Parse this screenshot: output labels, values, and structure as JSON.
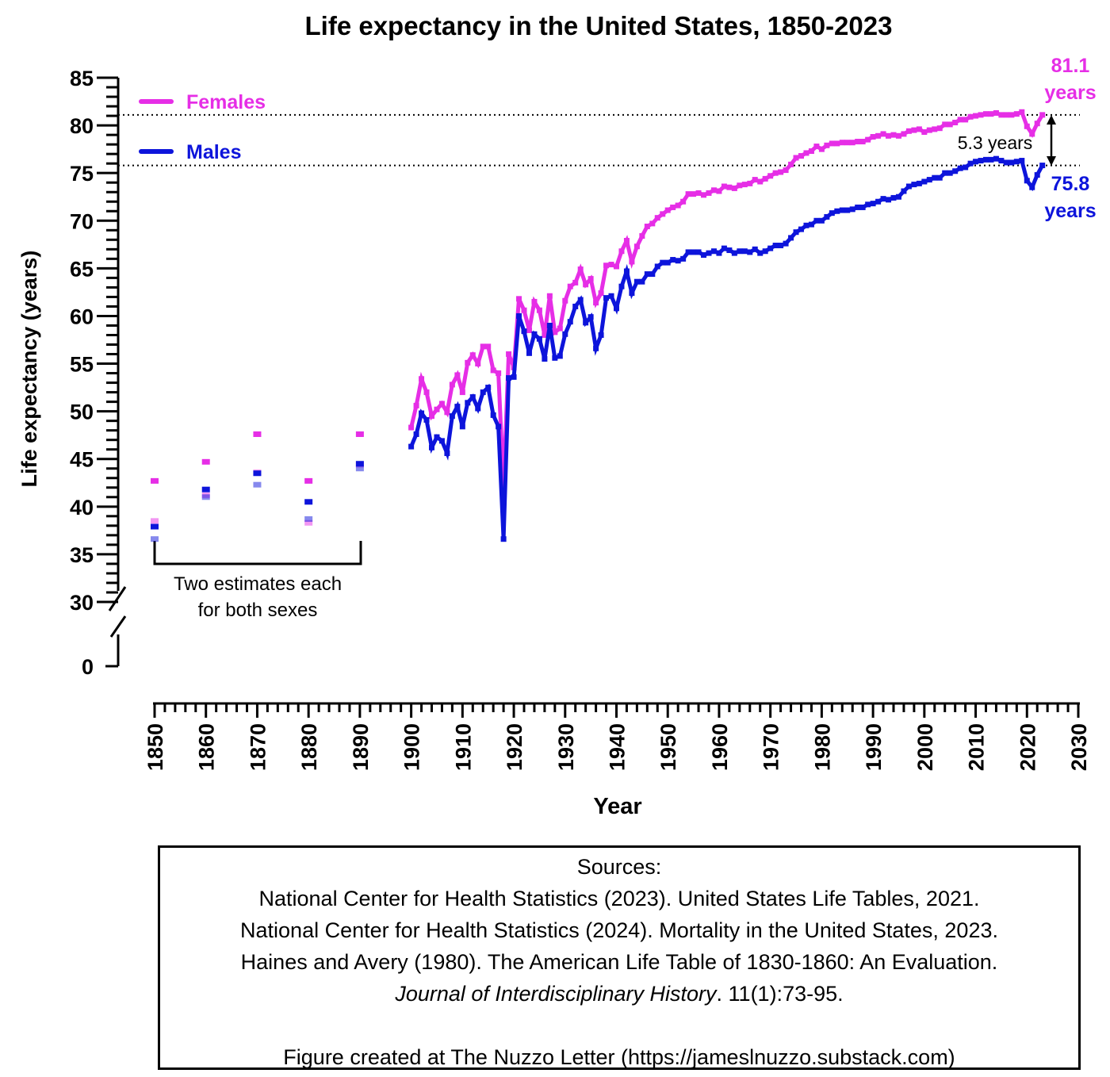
{
  "chart_data": {
    "type": "line",
    "title": "Life expectancy in the United States, 1850-2023",
    "xlabel": "Year",
    "ylabel": "Life expectancy (years)",
    "xlim": [
      1850,
      2030
    ],
    "ylim": [
      30,
      85
    ],
    "y_axis_break": {
      "below": 30,
      "bottom_tick": 0
    },
    "x_ticks": [
      "1850",
      "1860",
      "1870",
      "1880",
      "1890",
      "1900",
      "1910",
      "1920",
      "1930",
      "1940",
      "1950",
      "1960",
      "1970",
      "1980",
      "1990",
      "2000",
      "2010",
      "2020",
      "2030"
    ],
    "y_ticks": [
      "85",
      "80",
      "75",
      "70",
      "65",
      "60",
      "55",
      "50",
      "45",
      "40",
      "35",
      "30",
      "0"
    ],
    "grid": false,
    "legend_position": "top-left",
    "series": [
      {
        "name": "Females",
        "color": "#e62ee6",
        "x": [
          1900,
          1901,
          1902,
          1903,
          1904,
          1905,
          1906,
          1907,
          1908,
          1909,
          1910,
          1911,
          1912,
          1913,
          1914,
          1915,
          1916,
          1917,
          1918,
          1919,
          1920,
          1921,
          1922,
          1923,
          1924,
          1925,
          1926,
          1927,
          1928,
          1929,
          1930,
          1931,
          1932,
          1933,
          1934,
          1935,
          1936,
          1937,
          1938,
          1939,
          1940,
          1941,
          1942,
          1943,
          1944,
          1945,
          1946,
          1947,
          1948,
          1949,
          1950,
          1951,
          1952,
          1953,
          1954,
          1955,
          1956,
          1957,
          1958,
          1959,
          1960,
          1961,
          1962,
          1963,
          1964,
          1965,
          1966,
          1967,
          1968,
          1969,
          1970,
          1971,
          1972,
          1973,
          1974,
          1975,
          1976,
          1977,
          1978,
          1979,
          1980,
          1981,
          1982,
          1983,
          1984,
          1985,
          1986,
          1987,
          1988,
          1989,
          1990,
          1991,
          1992,
          1993,
          1994,
          1995,
          1996,
          1997,
          1998,
          1999,
          2000,
          2001,
          2002,
          2003,
          2004,
          2005,
          2006,
          2007,
          2008,
          2009,
          2010,
          2011,
          2012,
          2013,
          2014,
          2015,
          2016,
          2017,
          2018,
          2019,
          2020,
          2021,
          2022,
          2023
        ],
        "y": [
          48.3,
          50.6,
          53.4,
          52.0,
          49.5,
          50.2,
          50.8,
          49.9,
          52.8,
          53.8,
          52.0,
          55.1,
          55.9,
          55.0,
          56.8,
          56.8,
          54.3,
          54.0,
          42.2,
          56.0,
          54.6,
          61.8,
          60.6,
          58.5,
          61.5,
          60.6,
          58.0,
          62.1,
          58.3,
          58.7,
          61.6,
          63.1,
          63.5,
          64.9,
          63.3,
          63.9,
          61.4,
          62.4,
          65.3,
          65.4,
          65.2,
          66.8,
          67.9,
          65.7,
          67.3,
          68.4,
          69.4,
          69.7,
          70.3,
          70.7,
          71.1,
          71.4,
          71.6,
          72.0,
          72.8,
          72.8,
          72.9,
          72.7,
          72.9,
          73.2,
          73.1,
          73.6,
          73.5,
          73.4,
          73.7,
          73.8,
          73.9,
          74.3,
          74.1,
          74.4,
          74.7,
          75.0,
          75.1,
          75.3,
          75.9,
          76.6,
          76.8,
          77.1,
          77.3,
          77.8,
          77.5,
          77.9,
          78.1,
          78.1,
          78.2,
          78.2,
          78.2,
          78.3,
          78.3,
          78.5,
          78.8,
          78.9,
          79.1,
          78.9,
          79.0,
          78.9,
          79.1,
          79.4,
          79.5,
          79.6,
          79.3,
          79.5,
          79.6,
          79.7,
          80.1,
          80.1,
          80.3,
          80.6,
          80.6,
          80.9,
          81.0,
          81.1,
          81.2,
          81.2,
          81.3,
          81.1,
          81.1,
          81.1,
          81.2,
          81.4,
          79.9,
          79.1,
          80.2,
          81.1
        ]
      },
      {
        "name": "Males",
        "color": "#0d14db",
        "x": [
          1900,
          1901,
          1902,
          1903,
          1904,
          1905,
          1906,
          1907,
          1908,
          1909,
          1910,
          1911,
          1912,
          1913,
          1914,
          1915,
          1916,
          1917,
          1918,
          1919,
          1920,
          1921,
          1922,
          1923,
          1924,
          1925,
          1926,
          1927,
          1928,
          1929,
          1930,
          1931,
          1932,
          1933,
          1934,
          1935,
          1936,
          1937,
          1938,
          1939,
          1940,
          1941,
          1942,
          1943,
          1944,
          1945,
          1946,
          1947,
          1948,
          1949,
          1950,
          1951,
          1952,
          1953,
          1954,
          1955,
          1956,
          1957,
          1958,
          1959,
          1960,
          1961,
          1962,
          1963,
          1964,
          1965,
          1966,
          1967,
          1968,
          1969,
          1970,
          1971,
          1972,
          1973,
          1974,
          1975,
          1976,
          1977,
          1978,
          1979,
          1980,
          1981,
          1982,
          1983,
          1984,
          1985,
          1986,
          1987,
          1988,
          1989,
          1990,
          1991,
          1992,
          1993,
          1994,
          1995,
          1996,
          1997,
          1998,
          1999,
          2000,
          2001,
          2002,
          2003,
          2004,
          2005,
          2006,
          2007,
          2008,
          2009,
          2010,
          2011,
          2012,
          2013,
          2014,
          2015,
          2016,
          2017,
          2018,
          2019,
          2020,
          2021,
          2022,
          2023
        ],
        "y": [
          46.3,
          47.6,
          49.8,
          49.1,
          46.2,
          47.3,
          46.9,
          45.6,
          49.5,
          50.5,
          48.4,
          50.9,
          51.5,
          50.3,
          52.0,
          52.5,
          49.6,
          48.4,
          36.6,
          53.5,
          53.6,
          60.0,
          58.4,
          56.1,
          58.1,
          57.6,
          55.5,
          59.0,
          55.6,
          55.8,
          58.1,
          59.4,
          61.0,
          61.7,
          59.3,
          59.9,
          56.6,
          58.0,
          61.9,
          62.1,
          60.8,
          63.1,
          64.7,
          62.4,
          63.6,
          63.6,
          64.4,
          64.4,
          65.2,
          65.6,
          65.6,
          65.9,
          65.8,
          66.0,
          66.7,
          66.7,
          66.7,
          66.4,
          66.6,
          66.8,
          66.6,
          67.1,
          66.9,
          66.6,
          66.8,
          66.8,
          66.7,
          67.0,
          66.6,
          66.8,
          67.1,
          67.4,
          67.4,
          67.6,
          68.2,
          68.8,
          69.1,
          69.5,
          69.6,
          70.0,
          70.0,
          70.4,
          70.8,
          71.0,
          71.1,
          71.1,
          71.2,
          71.4,
          71.4,
          71.7,
          71.8,
          72.0,
          72.3,
          72.2,
          72.4,
          72.5,
          73.1,
          73.6,
          73.8,
          73.9,
          74.1,
          74.3,
          74.5,
          74.5,
          75.0,
          75.0,
          75.2,
          75.5,
          75.6,
          76.0,
          76.2,
          76.3,
          76.4,
          76.4,
          76.5,
          76.3,
          76.1,
          76.1,
          76.2,
          76.3,
          74.2,
          73.5,
          74.8,
          75.8
        ]
      },
      {
        "name": "Females estimates",
        "color": "#e62ee6",
        "type": "scatter",
        "x": [
          1850,
          1850,
          1860,
          1860,
          1870,
          1870,
          1880,
          1880,
          1890,
          1890
        ],
        "y": [
          42.7,
          38.5,
          44.7,
          41.2,
          47.6,
          43.6,
          42.7,
          38.3,
          47.6,
          44.4
        ]
      },
      {
        "name": "Males estimates",
        "color": "#0d14db",
        "type": "scatter",
        "x": [
          1850,
          1850,
          1860,
          1860,
          1870,
          1870,
          1880,
          1880,
          1890,
          1890
        ],
        "y": [
          37.9,
          36.6,
          41.8,
          41.0,
          43.5,
          42.3,
          40.5,
          38.7,
          44.5,
          44.0
        ]
      }
    ],
    "legend": [
      {
        "label": "Females",
        "color": "#e62ee6"
      },
      {
        "label": "Males",
        "color": "#0d14db"
      }
    ],
    "annotations": {
      "female_end_value": "81.1",
      "female_end_unit": "years",
      "male_end_value": "75.8",
      "male_end_unit": "years",
      "gap_label": "5.3 years",
      "female_reference_y": 81.1,
      "male_reference_y": 75.8,
      "bracket_label_line1": "Two estimates each",
      "bracket_label_line2": "for both sexes"
    }
  },
  "sources": {
    "heading": "Sources:",
    "line1": "National Center for Health Statistics (2023). United States Life Tables, 2021.",
    "line2": "National Center for Health Statistics (2024). Mortality in the United States, 2023.",
    "line3": "Haines and Avery (1980). The American Life Table of 1830-1860: An Evaluation.",
    "line4_italic": "Journal of Interdisciplinary History",
    "line4_rest": ". 11(1):73-95.",
    "credit": "Figure created at The Nuzzo Letter (https://jameslnuzzo.substack.com)"
  }
}
